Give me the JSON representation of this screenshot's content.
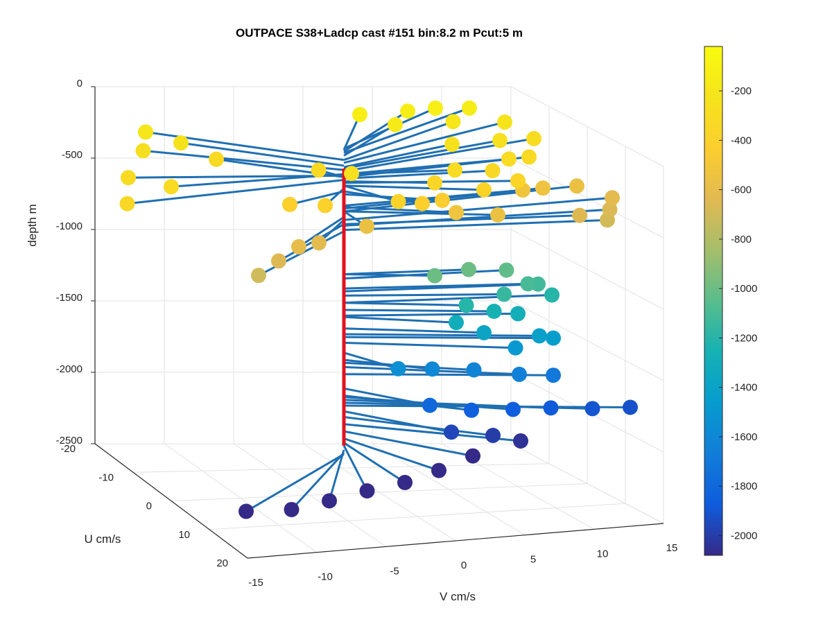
{
  "chart_data": {
    "type": "scatter3d",
    "title": "OUTPACE S38+Ladcp cast #151 bin:8.2 m  Pcut:5 m",
    "xlabel": "V cm/s",
    "ylabel": "U cm/s",
    "zlabel": "depth m",
    "xlim": [
      -15,
      15
    ],
    "ylim": [
      -20,
      20
    ],
    "zlim": [
      -2500,
      0
    ],
    "x_ticks": [
      "-15",
      "-10",
      "-5",
      "0",
      "5",
      "10",
      "15"
    ],
    "y_ticks": [
      "-20",
      "-10",
      "0",
      "10",
      "20"
    ],
    "z_ticks": [
      "0",
      "-500",
      "-1000",
      "-1500",
      "-2000",
      "-2500"
    ],
    "grid": true,
    "colorbar": {
      "colormap": "parula",
      "range": [
        -2080,
        -20
      ],
      "ticks": [
        "-200",
        "-400",
        "-600",
        "-800",
        "-1000",
        "-1200",
        "-1400",
        "-1600",
        "-1800",
        "-2000"
      ]
    },
    "series": [
      {
        "type": "stems",
        "color": "#1f6fb2"
      },
      {
        "type": "markers",
        "marker": "filled-circle"
      },
      {
        "type": "depth-line",
        "color": "#e3121b"
      }
    ],
    "points": [
      {
        "v": 3,
        "u": -16,
        "depth": -130,
        "m": "parula"
      },
      {
        "v": 7,
        "u": -18,
        "depth": -140
      },
      {
        "v": 9,
        "u": -18,
        "depth": -120
      },
      {
        "v": 5,
        "u": -14,
        "depth": -170
      },
      {
        "v": 12,
        "u": -20,
        "depth": -150
      },
      {
        "v": 10,
        "u": -17,
        "depth": -200
      },
      {
        "v": 14,
        "u": -18,
        "depth": -220
      },
      {
        "v": 8,
        "u": -10,
        "depth": -250
      },
      {
        "v": 12,
        "u": -12,
        "depth": -260
      },
      {
        "v": 15,
        "u": -14,
        "depth": -280
      },
      {
        "v": 11,
        "u": -6,
        "depth": -300
      },
      {
        "v": 9,
        "u": -3,
        "depth": -330
      },
      {
        "v": 13,
        "u": -8,
        "depth": -320
      },
      {
        "v": 10,
        "u": 0,
        "depth": -360
      },
      {
        "v": 7,
        "u": 2,
        "depth": -380
      },
      {
        "v": 6,
        "u": -2,
        "depth": -300
      },
      {
        "v": 4,
        "u": 0,
        "depth": -350
      },
      {
        "v": -11,
        "u": -12,
        "depth": -240
      },
      {
        "v": -9,
        "u": -10,
        "depth": -320
      },
      {
        "v": -13,
        "u": -14,
        "depth": -200
      },
      {
        "v": -14,
        "u": -11,
        "depth": -270
      },
      {
        "v": -15,
        "u": 0,
        "depth": -300
      },
      {
        "v": -17,
        "u": -4,
        "depth": -310
      },
      {
        "v": -19,
        "u": 3,
        "depth": -340
      },
      {
        "v": -3,
        "u": -5,
        "depth": -320
      },
      {
        "v": -2,
        "u": 0,
        "depth": -260
      },
      {
        "v": -5,
        "u": 4,
        "depth": -400
      },
      {
        "v": -7,
        "u": 2,
        "depth": -420
      },
      {
        "v": 0,
        "u": 5,
        "depth": -380
      },
      {
        "v": 2,
        "u": 4,
        "depth": -420
      },
      {
        "v": 4,
        "u": 2,
        "depth": -440
      },
      {
        "v": -2,
        "u": 4,
        "depth": -560
      },
      {
        "v": -6,
        "u": 6,
        "depth": -620
      },
      {
        "v": -8,
        "u": 8,
        "depth": -600
      },
      {
        "v": -10,
        "u": 10,
        "depth": -650
      },
      {
        "v": -12,
        "u": 12,
        "depth": -700
      },
      {
        "v": 5,
        "u": 2,
        "depth": -530
      },
      {
        "v": 8,
        "u": 2,
        "depth": -560
      },
      {
        "v": 12,
        "u": -6,
        "depth": -520
      },
      {
        "v": 14,
        "u": -8,
        "depth": -540
      },
      {
        "v": 17,
        "u": -10,
        "depth": -560
      },
      {
        "v": 19,
        "u": -8,
        "depth": -620
      },
      {
        "v": 18,
        "u": -5,
        "depth": -660
      },
      {
        "v": 17,
        "u": -2,
        "depth": -690
      },
      {
        "v": 15,
        "u": -2,
        "depth": -650
      },
      {
        "v": 4,
        "u": 0,
        "depth": -1000
      },
      {
        "v": 7,
        "u": -2,
        "depth": -1000
      },
      {
        "v": 10,
        "u": -3,
        "depth": -1030
      },
      {
        "v": 11,
        "u": -1,
        "depth": -1100
      },
      {
        "v": 12,
        "u": -2,
        "depth": -1120
      },
      {
        "v": 9,
        "u": 0,
        "depth": -1150
      },
      {
        "v": 6,
        "u": 1,
        "depth": -1200
      },
      {
        "v": 8,
        "u": 1,
        "depth": -1250
      },
      {
        "v": 10,
        "u": 0,
        "depth": -1290
      },
      {
        "v": 13,
        "u": -2,
        "depth": -1200
      },
      {
        "v": 5,
        "u": 2,
        "depth": -1300
      },
      {
        "v": 7,
        "u": 2,
        "depth": -1380
      },
      {
        "v": 11,
        "u": 2,
        "depth": -1420
      },
      {
        "v": 9,
        "u": 3,
        "depth": -1480
      },
      {
        "v": 12,
        "u": 2,
        "depth": -1440
      },
      {
        "v": 0,
        "u": 5,
        "depth": -1550
      },
      {
        "v": 3,
        "u": 3,
        "depth": -1600
      },
      {
        "v": 6,
        "u": 3,
        "depth": -1620
      },
      {
        "v": 9,
        "u": 4,
        "depth": -1650
      },
      {
        "v": 12,
        "u": 2,
        "depth": -1700
      },
      {
        "v": 2,
        "u": 6,
        "depth": -1800
      },
      {
        "v": 5,
        "u": 6,
        "depth": -1850
      },
      {
        "v": 8,
        "u": 6,
        "depth": -1860
      },
      {
        "v": 11,
        "u": 5,
        "depth": -1880
      },
      {
        "v": 14,
        "u": 5,
        "depth": -1900
      },
      {
        "v": 17,
        "u": 4,
        "depth": -1920
      },
      {
        "v": 3,
        "u": 8,
        "depth": -1960
      },
      {
        "v": 6,
        "u": 8,
        "depth": -2000
      },
      {
        "v": 8,
        "u": 8,
        "depth": -2050
      },
      {
        "v": 4,
        "u": 10,
        "depth": -2100
      },
      {
        "v": 1,
        "u": 12,
        "depth": -2150
      },
      {
        "v": -2,
        "u": 14,
        "depth": -2180
      },
      {
        "v": -5,
        "u": 15,
        "depth": -2200
      },
      {
        "v": -8,
        "u": 16,
        "depth": -2230
      },
      {
        "v": -11,
        "u": 17,
        "depth": -2250
      },
      {
        "v": -14,
        "u": 16,
        "depth": -2260
      }
    ]
  }
}
